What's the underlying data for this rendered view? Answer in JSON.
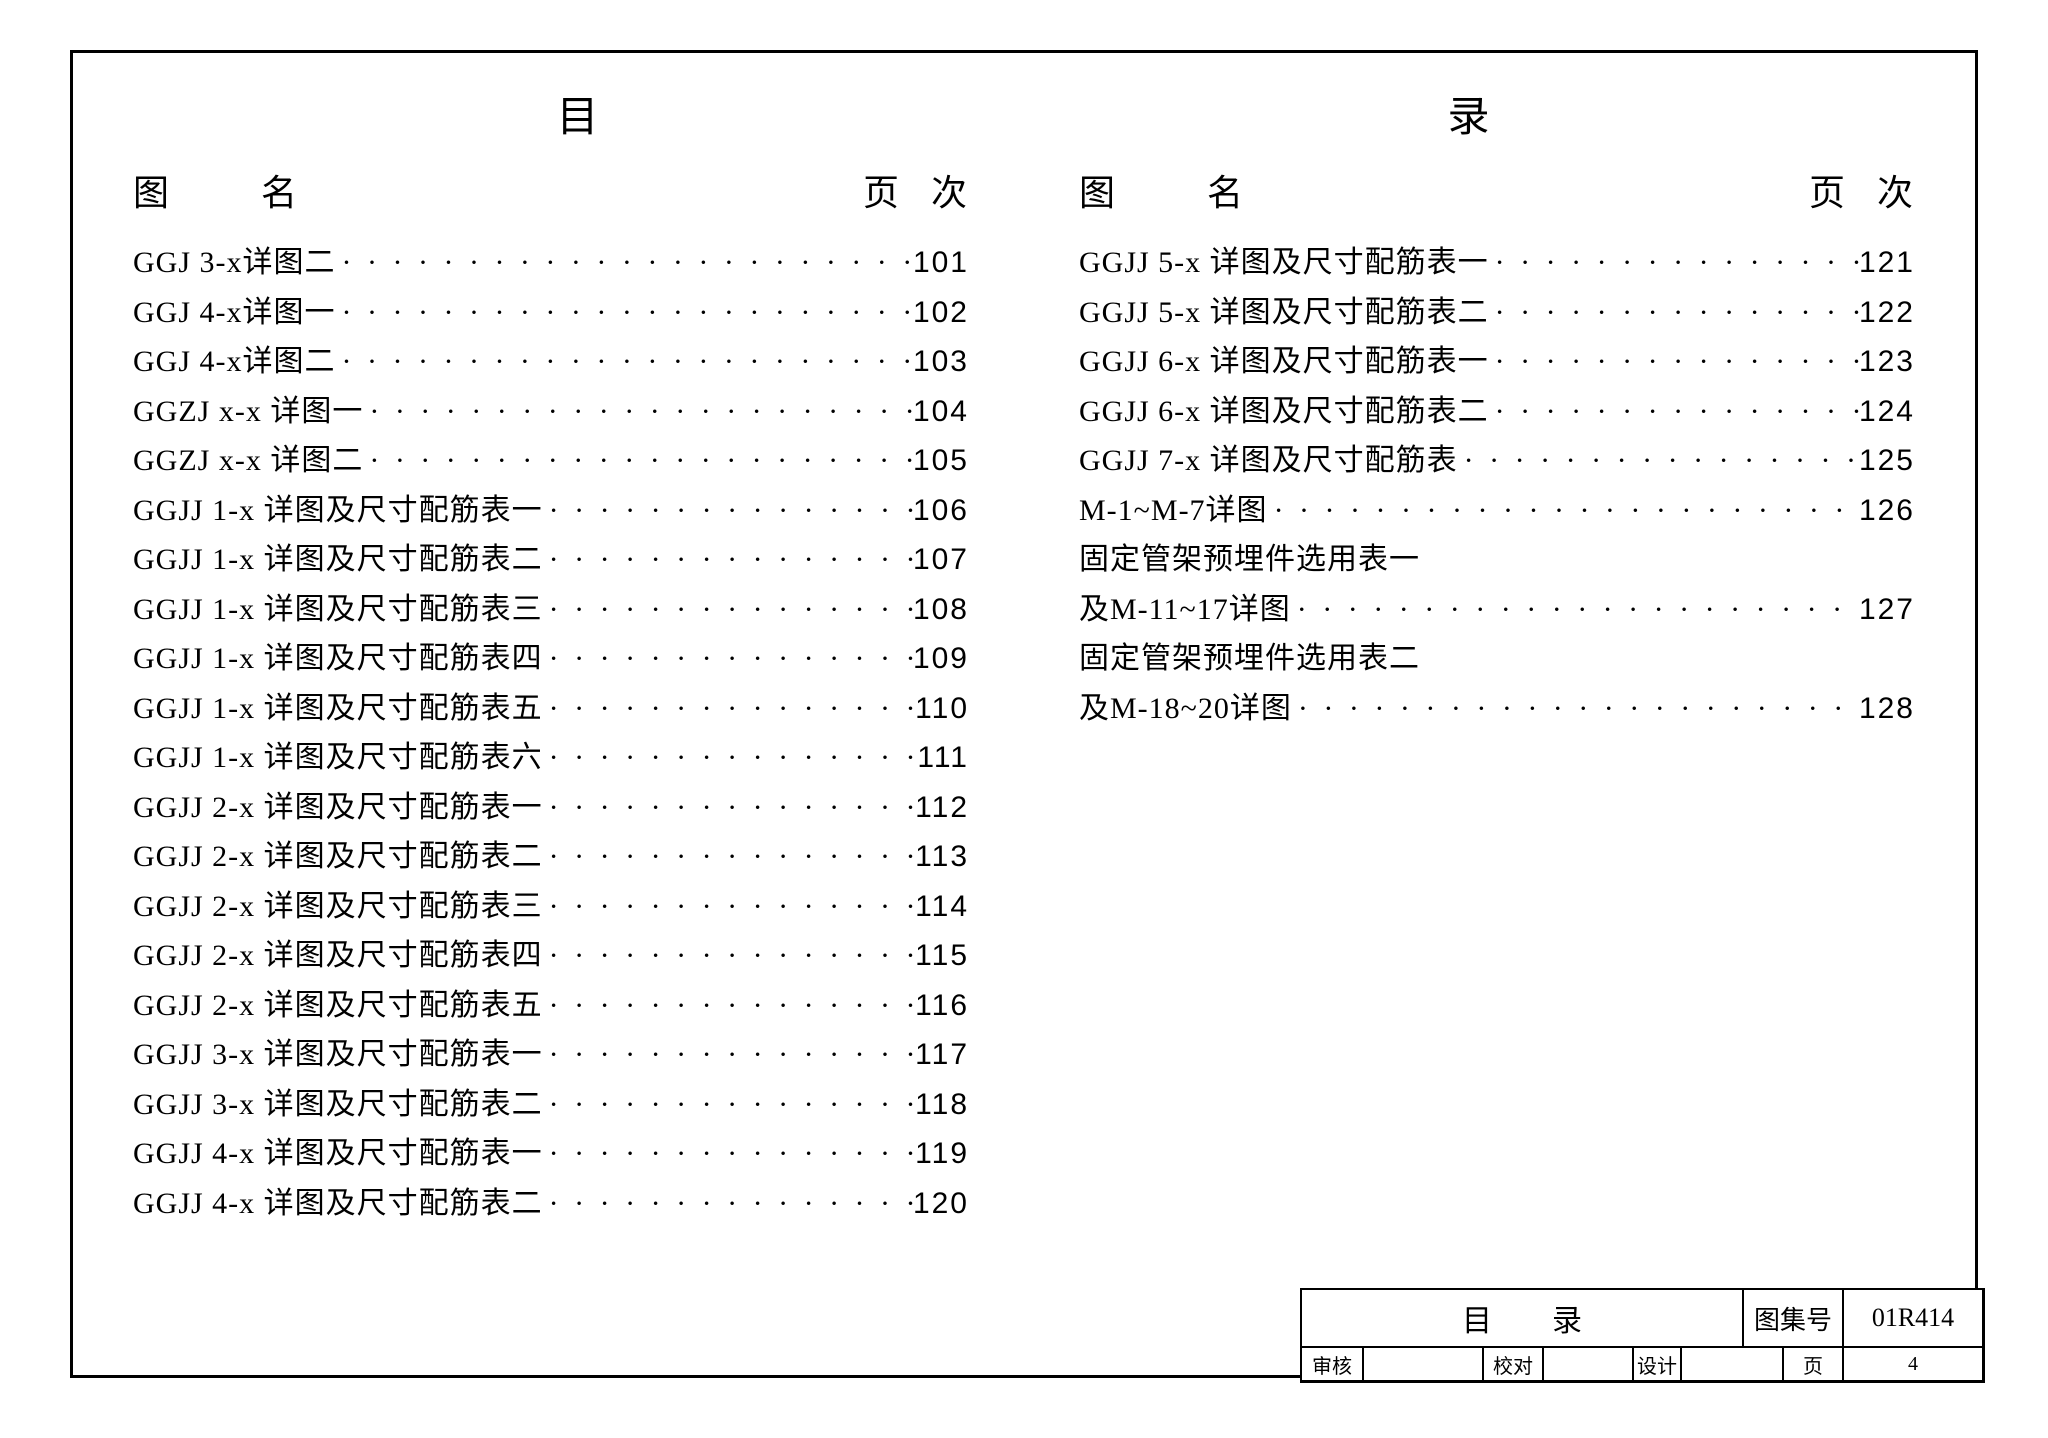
{
  "title": {
    "left": "目",
    "right": "录"
  },
  "header": {
    "tu": "图",
    "ming": "名",
    "ye": "页",
    "ci": "次"
  },
  "dots": "· · · · · · · · · · · · · · · · · · · · · · · · · · · · · · · · · · · · · · · ·",
  "col1": [
    {
      "label": "GGJ 3-x详图二",
      "page": "101"
    },
    {
      "label": "GGJ 4-x详图一",
      "page": "102"
    },
    {
      "label": "GGJ 4-x详图二",
      "page": "103"
    },
    {
      "label": "GGZJ x-x 详图一",
      "page": "104"
    },
    {
      "label": "GGZJ x-x 详图二",
      "page": "105"
    },
    {
      "label": "GGJJ 1-x 详图及尺寸配筋表一",
      "page": "106"
    },
    {
      "label": "GGJJ 1-x 详图及尺寸配筋表二",
      "page": "107"
    },
    {
      "label": "GGJJ 1-x 详图及尺寸配筋表三",
      "page": "108"
    },
    {
      "label": "GGJJ 1-x 详图及尺寸配筋表四",
      "page": "109"
    },
    {
      "label": "GGJJ 1-x 详图及尺寸配筋表五",
      "page": "110"
    },
    {
      "label": "GGJJ 1-x 详图及尺寸配筋表六",
      "page": "111"
    },
    {
      "label": "GGJJ 2-x 详图及尺寸配筋表一",
      "page": "112"
    },
    {
      "label": "GGJJ 2-x 详图及尺寸配筋表二",
      "page": "113"
    },
    {
      "label": "GGJJ 2-x 详图及尺寸配筋表三",
      "page": "114"
    },
    {
      "label": "GGJJ 2-x 详图及尺寸配筋表四",
      "page": "115"
    },
    {
      "label": "GGJJ 2-x 详图及尺寸配筋表五",
      "page": "116"
    },
    {
      "label": "GGJJ 3-x 详图及尺寸配筋表一",
      "page": "117"
    },
    {
      "label": "GGJJ 3-x 详图及尺寸配筋表二",
      "page": "118"
    },
    {
      "label": "GGJJ 4-x 详图及尺寸配筋表一",
      "page": "119"
    },
    {
      "label": "GGJJ 4-x 详图及尺寸配筋表二",
      "page": "120"
    }
  ],
  "col2": [
    {
      "label": "GGJJ 5-x 详图及尺寸配筋表一",
      "page": "121"
    },
    {
      "label": "GGJJ 5-x 详图及尺寸配筋表二",
      "page": "122"
    },
    {
      "label": "GGJJ 6-x 详图及尺寸配筋表一",
      "page": "123"
    },
    {
      "label": "GGJJ 6-x 详图及尺寸配筋表二",
      "page": "124"
    },
    {
      "label": "GGJJ 7-x 详图及尺寸配筋表",
      "page": "125"
    },
    {
      "label": "M-1~M-7详图",
      "page": "126"
    },
    {
      "label": "固定管架预埋件选用表一",
      "nopage": true
    },
    {
      "label": "及M-11~17详图",
      "page": "127"
    },
    {
      "label": "固定管架预埋件选用表二",
      "nopage": true
    },
    {
      "label": "及M-18~20详图",
      "page": "128"
    }
  ],
  "titleblock": {
    "r1": {
      "title": "目录",
      "codeLabel": "图集号",
      "code": "01R414"
    },
    "r2": {
      "l1": "审核",
      "v1": "",
      "l2": "校对",
      "v2": "",
      "l3": "设计",
      "v3": "",
      "l4": "页",
      "v4": "4"
    }
  }
}
